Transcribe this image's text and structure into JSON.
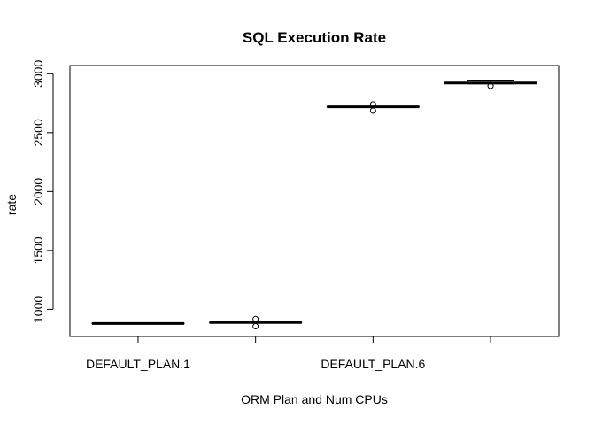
{
  "chart_data": {
    "type": "boxplot",
    "title": "SQL Execution Rate",
    "xlabel": "ORM Plan and Num CPUs",
    "ylabel": "rate",
    "ylim": [
      770,
      3070
    ],
    "yticks": [
      1000,
      1500,
      2000,
      2500,
      3000
    ],
    "categories": [
      "DEFAULT_PLAN.1",
      "",
      "DEFAULT_PLAN.6",
      ""
    ],
    "boxes": [
      {
        "median": 880,
        "q1": 878,
        "q3": 882,
        "whisker_low": 876,
        "whisker_high": 884,
        "outliers": []
      },
      {
        "median": 888,
        "q1": 885,
        "q3": 891,
        "whisker_low": 883,
        "whisker_high": 893,
        "outliers": [
          856,
          918
        ]
      },
      {
        "median": 2720,
        "q1": 2718,
        "q3": 2722,
        "whisker_low": 2716,
        "whisker_high": 2724,
        "outliers": [
          2687,
          2740
        ]
      },
      {
        "median": 2922,
        "q1": 2918,
        "q3": 2926,
        "whisker_low": 2914,
        "whisker_high": 2946,
        "outliers": [
          2896
        ]
      }
    ]
  }
}
